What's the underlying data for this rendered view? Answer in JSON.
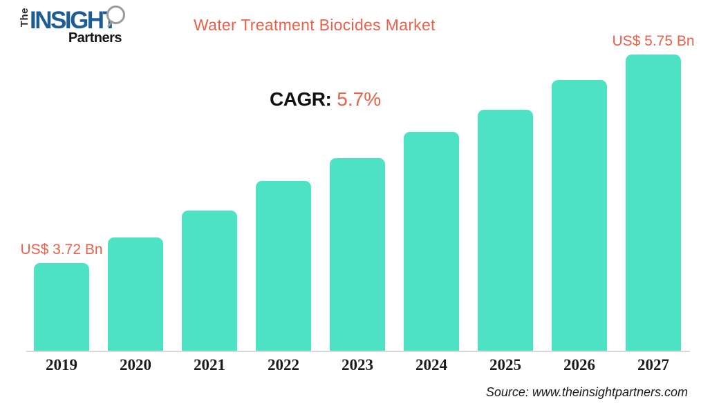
{
  "logo": {
    "the": "The",
    "insight": "INSIGHT",
    "partners": "Partners",
    "brand_blue": "#1d5c95"
  },
  "header": {
    "title": "Water Treatment Biocides Market",
    "title_color": "#e8614a"
  },
  "cagr": {
    "label": "CAGR:",
    "value": "5.7%"
  },
  "chart_data": {
    "type": "bar",
    "title": "Water Treatment Biocides Market",
    "categories": [
      "2019",
      "2020",
      "2021",
      "2022",
      "2023",
      "2024",
      "2025",
      "2026",
      "2027"
    ],
    "values": [
      3.72,
      3.97,
      4.23,
      4.52,
      4.74,
      5.0,
      5.21,
      5.5,
      5.75
    ],
    "unit": "US$ Bn",
    "cagr_percent": 5.7,
    "first_bar_label": "US$ 3.72 Bn",
    "last_bar_label": "US$ 5.75 Bn",
    "bar_color": "#4de2c4",
    "label_color": "#e8614a",
    "xlabel": "",
    "ylabel": "",
    "ylim": [
      2.87,
      5.75
    ],
    "grid": false,
    "legend": false,
    "y_axis_shown": false
  },
  "footer": {
    "source": "Source: www.theinsightpartners.com"
  }
}
